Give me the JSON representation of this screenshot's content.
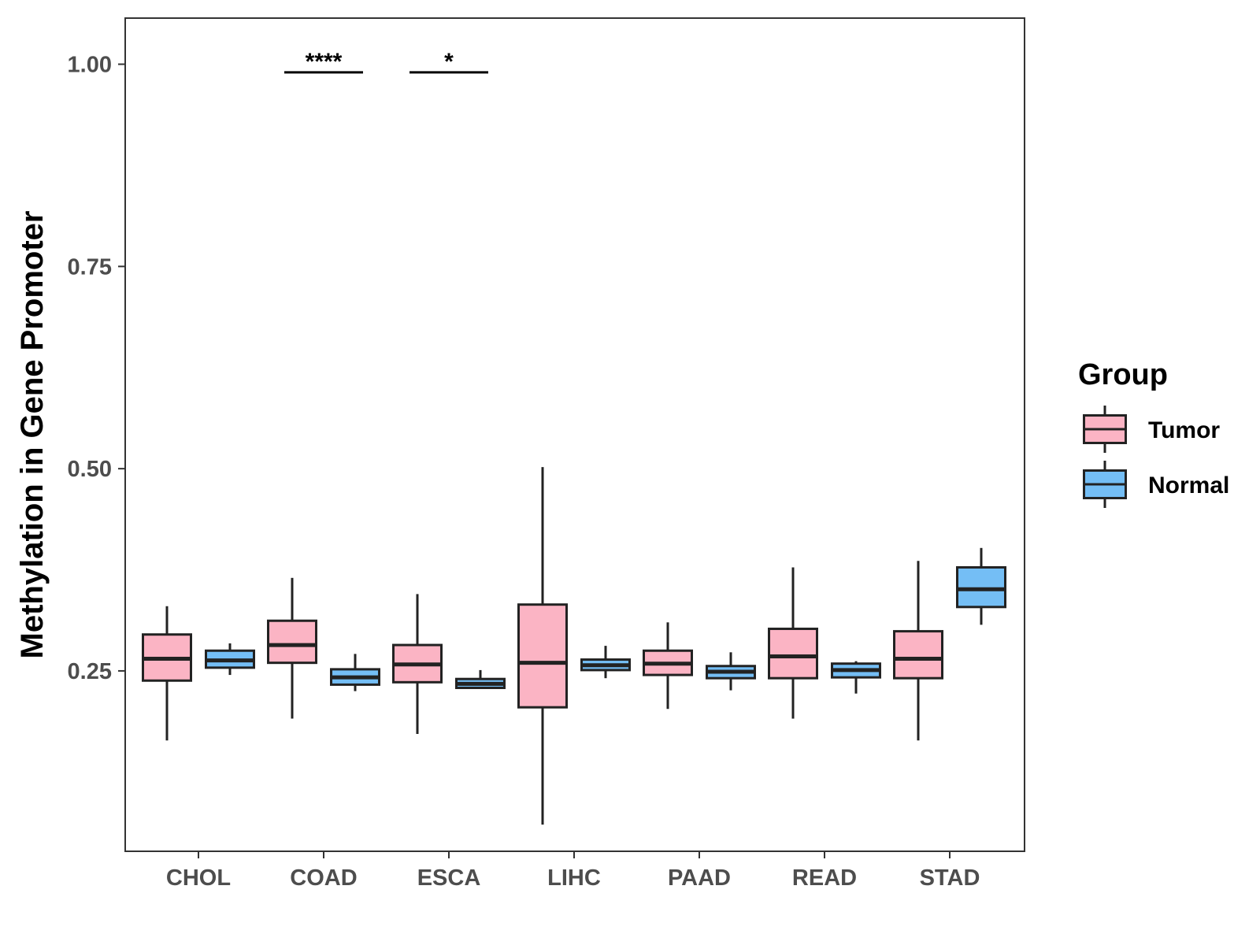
{
  "chart_data": {
    "type": "boxplot",
    "title": "",
    "xlabel": "",
    "ylabel": "Methylation in Gene Promoter",
    "ylim": [
      0.027,
      1.057
    ],
    "yticks": [
      0.25,
      0.5,
      0.75,
      1.0
    ],
    "ytick_labels": [
      "0.25",
      "0.50",
      "0.75",
      "1.00"
    ],
    "categories": [
      "CHOL",
      "COAD",
      "ESCA",
      "LIHC",
      "PAAD",
      "READ",
      "STAD"
    ],
    "legend": {
      "title": "Group",
      "placement": "right",
      "entries": [
        {
          "name": "Tumor",
          "color": "#FBB4C4"
        },
        {
          "name": "Normal",
          "color": "#74BEF5"
        }
      ]
    },
    "series": [
      {
        "name": "Tumor",
        "color": "#FBB4C4",
        "boxes": [
          {
            "min": 0.164,
            "q1": 0.238,
            "median": 0.265,
            "q3": 0.295,
            "max": 0.33
          },
          {
            "min": 0.191,
            "q1": 0.26,
            "median": 0.282,
            "q3": 0.312,
            "max": 0.365
          },
          {
            "min": 0.172,
            "q1": 0.236,
            "median": 0.258,
            "q3": 0.282,
            "max": 0.345
          },
          {
            "min": 0.06,
            "q1": 0.205,
            "median": 0.26,
            "q3": 0.332,
            "max": 0.502
          },
          {
            "min": 0.203,
            "q1": 0.245,
            "median": 0.259,
            "q3": 0.275,
            "max": 0.31
          },
          {
            "min": 0.191,
            "q1": 0.241,
            "median": 0.268,
            "q3": 0.302,
            "max": 0.378
          },
          {
            "min": 0.164,
            "q1": 0.241,
            "median": 0.265,
            "q3": 0.299,
            "max": 0.386
          }
        ]
      },
      {
        "name": "Normal",
        "color": "#74BEF5",
        "boxes": [
          {
            "min": 0.245,
            "q1": 0.254,
            "median": 0.263,
            "q3": 0.275,
            "max": 0.284
          },
          {
            "min": 0.225,
            "q1": 0.233,
            "median": 0.242,
            "q3": 0.252,
            "max": 0.271
          },
          {
            "min": 0.229,
            "q1": 0.229,
            "median": 0.234,
            "q3": 0.24,
            "max": 0.251
          },
          {
            "min": 0.241,
            "q1": 0.251,
            "median": 0.257,
            "q3": 0.264,
            "max": 0.281
          },
          {
            "min": 0.226,
            "q1": 0.241,
            "median": 0.249,
            "q3": 0.256,
            "max": 0.273
          },
          {
            "min": 0.222,
            "q1": 0.242,
            "median": 0.251,
            "q3": 0.259,
            "max": 0.262
          },
          {
            "min": 0.307,
            "q1": 0.329,
            "median": 0.351,
            "q3": 0.378,
            "max": 0.402
          }
        ]
      }
    ],
    "significance": [
      {
        "category": "COAD",
        "label": "****",
        "y": 0.99
      },
      {
        "category": "ESCA",
        "label": "*",
        "y": 0.99
      }
    ]
  }
}
